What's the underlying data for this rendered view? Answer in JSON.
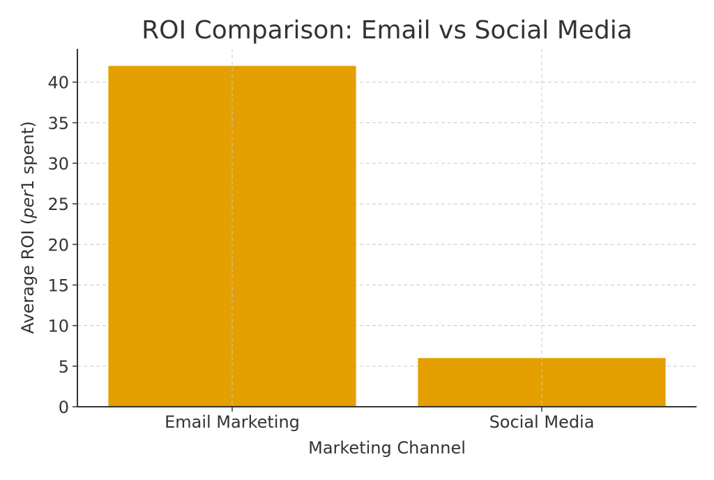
{
  "chart_data": {
    "type": "bar",
    "title": "ROI Comparison: Email vs Social Media",
    "xlabel": "Marketing Channel",
    "ylabel_prefix": "Average ROI (",
    "ylabel_math": "per",
    "ylabel_suffix": "1 spent)",
    "categories": [
      "Email Marketing",
      "Social Media"
    ],
    "values": [
      42,
      6
    ],
    "ylim": [
      0,
      44.1
    ],
    "yticks": [
      0,
      5,
      10,
      15,
      20,
      25,
      30,
      35,
      40
    ],
    "grid": true,
    "bar_color": "#E49F00",
    "grid_color": "#c8c8c8",
    "text_color": "#333333"
  }
}
